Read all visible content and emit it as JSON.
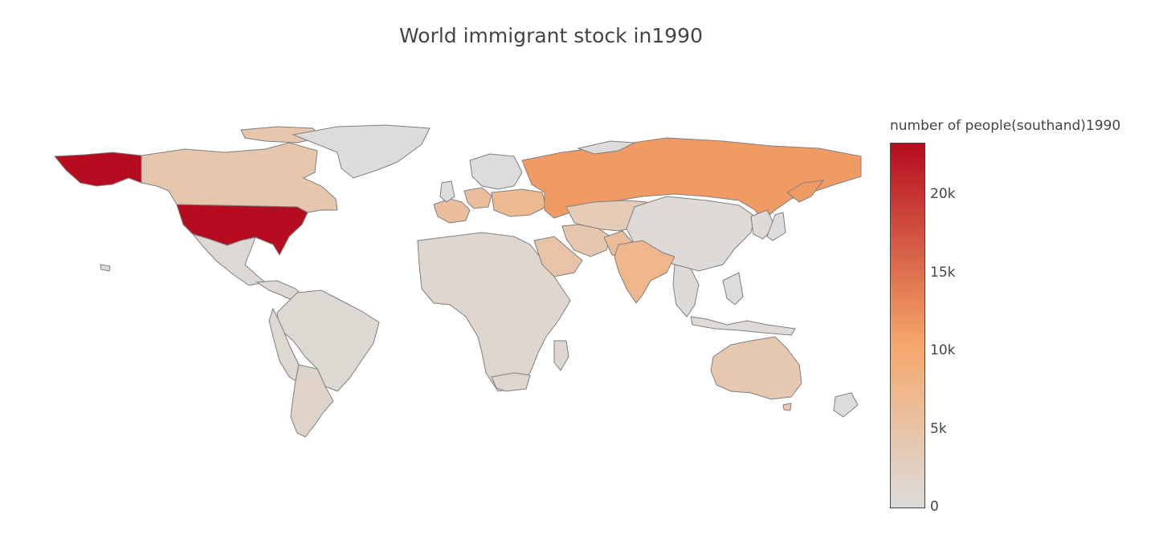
{
  "title": "World immigrant stock in1990",
  "colorbar": {
    "title": "number of people(southand)1990",
    "ticks": [
      {
        "label": "0",
        "value": 0
      },
      {
        "label": "5k",
        "value": 5000
      },
      {
        "label": "10k",
        "value": 10000
      },
      {
        "label": "15k",
        "value": 15000
      },
      {
        "label": "20k",
        "value": 20000
      }
    ],
    "range": [
      0,
      23300
    ],
    "colors": [
      "#dcdcdc",
      "#f5a76a",
      "#b50c1f"
    ]
  },
  "chart_data": {
    "type": "choropleth",
    "title": "World immigrant stock in1990",
    "colorbar_title": "number of people(southand)1990",
    "zrange": [
      0,
      23300
    ],
    "regions": [
      {
        "name": "United States",
        "value": 23300
      },
      {
        "name": "Russia",
        "value": 11500
      },
      {
        "name": "India",
        "value": 7500
      },
      {
        "name": "Saudi Arabia",
        "value": 4900
      },
      {
        "name": "Canada",
        "value": 4300
      },
      {
        "name": "Australia",
        "value": 4000
      },
      {
        "name": "Iran",
        "value": 4200
      },
      {
        "name": "Pakistan",
        "value": 6300
      },
      {
        "name": "France",
        "value": 5900
      },
      {
        "name": "Germany",
        "value": 5900
      },
      {
        "name": "Ukraine",
        "value": 6900
      },
      {
        "name": "Kazakhstan",
        "value": 3600
      },
      {
        "name": "Argentina",
        "value": 1700
      },
      {
        "name": "Brazil",
        "value": 800
      },
      {
        "name": "Mexico",
        "value": 700
      },
      {
        "name": "South Africa",
        "value": 1200
      },
      {
        "name": "China",
        "value": 400
      },
      {
        "name": "Greenland",
        "value": 0
      },
      {
        "name": "Sudan",
        "value": 1100
      }
    ]
  }
}
